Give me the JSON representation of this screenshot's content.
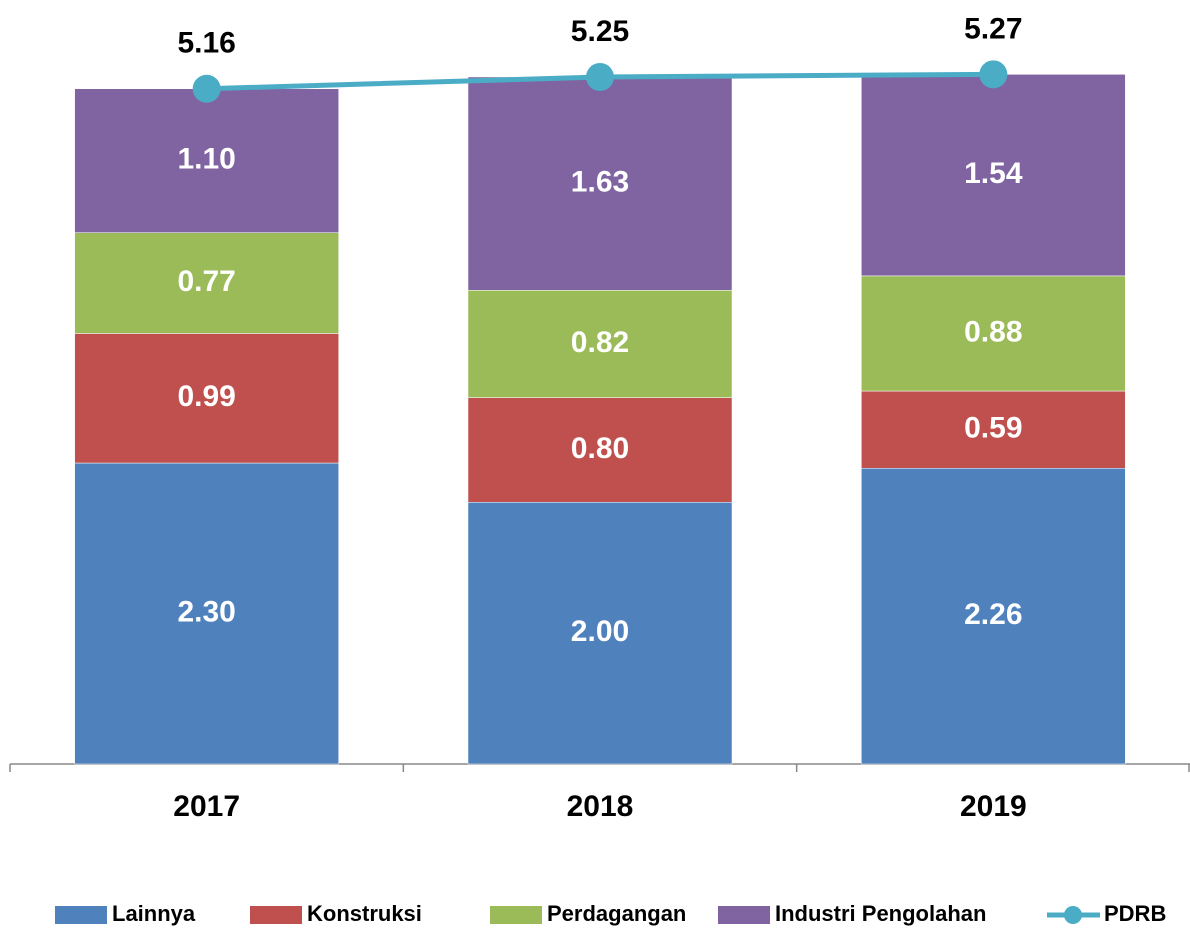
{
  "chart_data": {
    "type": "bar",
    "stacked": true,
    "categories": [
      "2017",
      "2018",
      "2019"
    ],
    "ylim": [
      0,
      5.8
    ],
    "series": [
      {
        "name": "Lainnya",
        "color": "#4f81bd",
        "values": [
          2.3,
          2.0,
          2.26
        ],
        "value_labels": [
          "2.30",
          "2.00",
          "2.26"
        ]
      },
      {
        "name": "Konstruksi",
        "color": "#c0504d",
        "values": [
          0.99,
          0.8,
          0.59
        ],
        "value_labels": [
          "0.99",
          "0.80",
          "0.59"
        ]
      },
      {
        "name": "Perdagangan",
        "color": "#9bbb59",
        "values": [
          0.77,
          0.82,
          0.88
        ],
        "value_labels": [
          "0.77",
          "0.82",
          "0.88"
        ]
      },
      {
        "name": "Industri Pengolahan",
        "color": "#8064a2",
        "values": [
          1.1,
          1.63,
          1.54
        ],
        "value_labels": [
          "1.10",
          "1.63",
          "1.54"
        ]
      },
      {
        "name": "PDRB",
        "type": "line",
        "color": "#4bacc6",
        "values": [
          5.16,
          5.25,
          5.27
        ],
        "value_labels": [
          "5.16",
          "5.25",
          "5.27"
        ]
      }
    ],
    "legend": "bottom"
  }
}
